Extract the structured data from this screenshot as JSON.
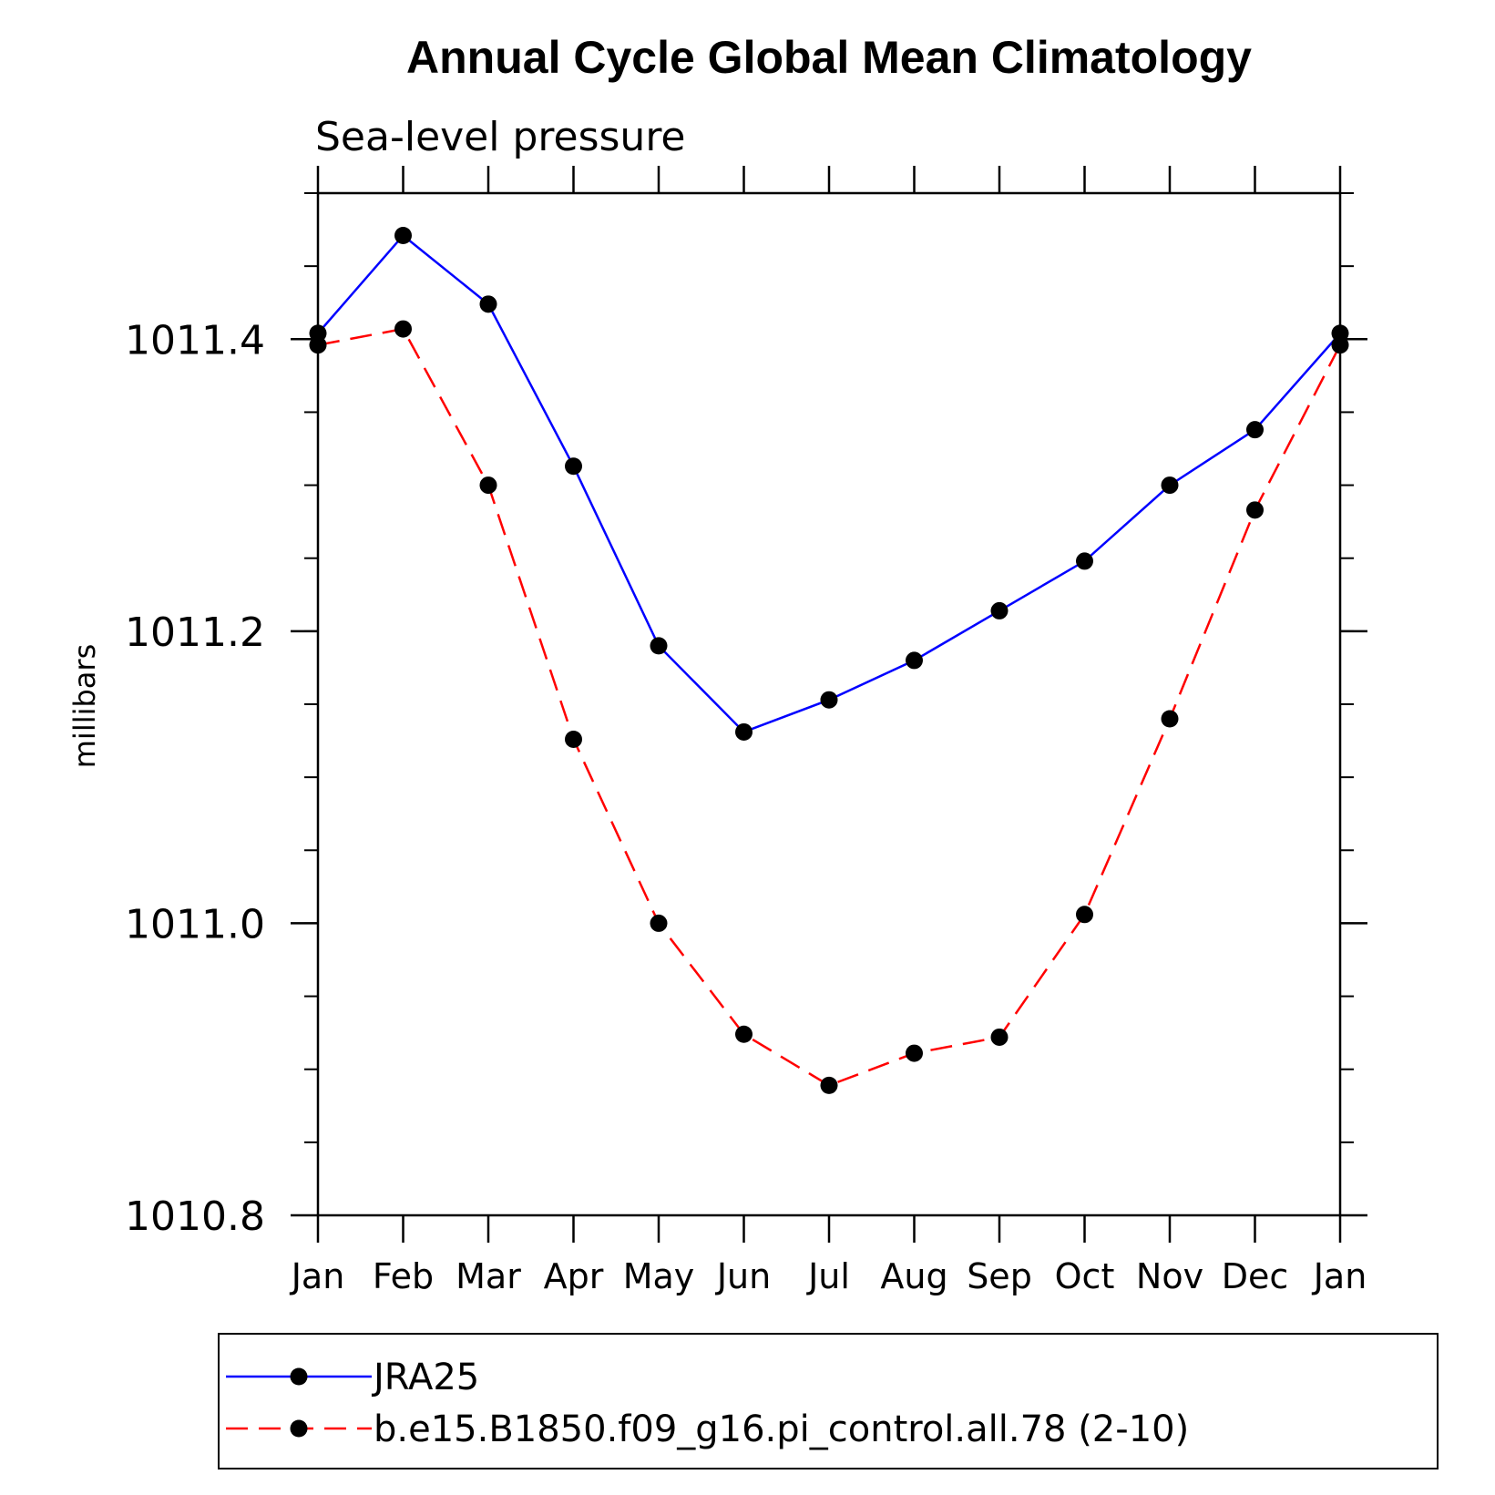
{
  "chart_data": {
    "type": "line",
    "title": "Annual Cycle Global Mean Climatology",
    "subtitle": "Sea-level pressure",
    "xlabel": "",
    "ylabel": "millibars",
    "categories": [
      "Jan",
      "Feb",
      "Mar",
      "Apr",
      "May",
      "Jun",
      "Jul",
      "Aug",
      "Sep",
      "Oct",
      "Nov",
      "Dec",
      "Jan"
    ],
    "ylim": [
      1010.8,
      1011.5
    ],
    "yticks": [
      1010.8,
      1011.0,
      1011.2,
      1011.4
    ],
    "ytick_labels": [
      "1010.8",
      "1011.0",
      "1011.2",
      "1011.4"
    ],
    "yminor_step": 0.05,
    "grid": false,
    "legend_position": "bottom",
    "series": [
      {
        "name": "JRA25",
        "color": "#0000ff",
        "dash": "solid",
        "values": [
          1011.404,
          1011.471,
          1011.424,
          1011.313,
          1011.19,
          1011.131,
          1011.153,
          1011.18,
          1011.214,
          1011.248,
          1011.3,
          1011.338,
          1011.404
        ]
      },
      {
        "name": "b.e15.B1850.f09_g16.pi_control.all.78 (2-10)",
        "color": "#ff0000",
        "dash": "dashed",
        "values": [
          1011.396,
          1011.407,
          1011.3,
          1011.126,
          1011.0,
          1010.924,
          1010.889,
          1010.911,
          1010.922,
          1011.006,
          1011.14,
          1011.283,
          1011.396
        ]
      }
    ]
  }
}
